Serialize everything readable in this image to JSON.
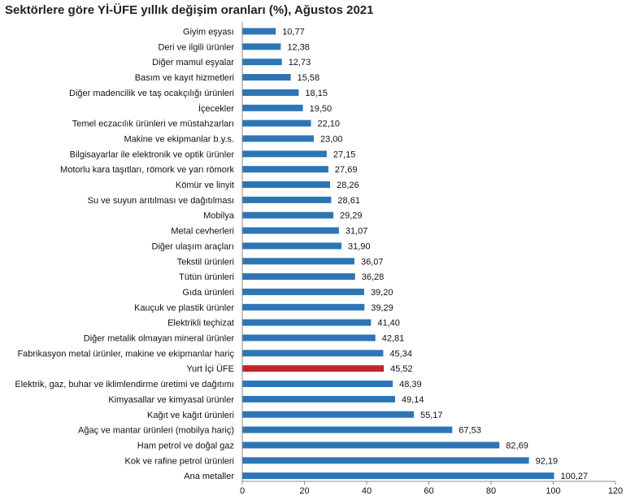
{
  "chart_data": {
    "type": "bar",
    "orientation": "horizontal",
    "title": "Sektörlere göre Yİ-ÜFE yıllık değişim oranları (%), Ağustos 2021",
    "xlabel": "",
    "ylabel": "",
    "xlim": [
      0,
      120
    ],
    "xticks": [
      "0",
      "20",
      "40",
      "60",
      "80",
      "100",
      "120"
    ],
    "grid": false,
    "legend": "none",
    "colors": {
      "default": "#2E75B6",
      "highlight": "#C0272D"
    },
    "highlight_category": "Yurt İçi ÜFE",
    "categories": [
      "Giyim eşyası",
      "Deri ve ilgili ürünler",
      "Diğer mamul eşyalar",
      "Basım ve kayıt hizmetleri",
      "Diğer madencilik ve taş ocakçılığı ürünleri",
      "İçecekler",
      "Temel eczacılık ürünleri ve müstahzarları",
      "Makine ve ekipmanlar b.y.s.",
      "Bilgisayarlar ile elektronik ve optik ürünler",
      "Motorlu kara taşıtları, römork ve yarı römork",
      "Kömür ve linyit",
      "Su ve suyun arıtılması ve dağıtılması",
      "Mobilya",
      "Metal cevherleri",
      "Diğer ulaşım araçları",
      "Tekstil ürünleri",
      "Tütün ürünleri",
      "Gıda ürünleri",
      "Kauçuk ve plastik ürünler",
      "Elektrikli teçhizat",
      "Diğer metalik olmayan mineral ürünler",
      "Fabrikasyon metal ürünler, makine ve ekipmanlar hariç",
      "Yurt İçi ÜFE",
      "Elektrik, gaz, buhar ve iklimlendirme üretimi ve dağıtımı",
      "Kimyasallar ve kimyasal ürünler",
      "Kağıt ve kağıt ürünleri",
      "Ağaç ve mantar ürünleri (mobilya hariç)",
      "Ham petrol ve doğal gaz",
      "Kok ve rafine petrol ürünleri",
      "Ana metaller"
    ],
    "values": [
      10.77,
      12.38,
      12.73,
      15.58,
      18.15,
      19.5,
      22.1,
      23.0,
      27.15,
      27.69,
      28.26,
      28.61,
      29.29,
      31.07,
      31.9,
      36.07,
      36.28,
      39.2,
      39.29,
      41.4,
      42.81,
      45.34,
      45.52,
      48.39,
      49.14,
      55.17,
      67.53,
      82.69,
      92.19,
      100.27
    ],
    "value_labels": [
      "10,77",
      "12,38",
      "12,73",
      "15,58",
      "18,15",
      "19,50",
      "22,10",
      "23,00",
      "27,15",
      "27,69",
      "28,26",
      "28,61",
      "29,29",
      "31,07",
      "31,90",
      "36,07",
      "36,28",
      "39,20",
      "39,29",
      "41,40",
      "42,81",
      "45,34",
      "45,52",
      "48,39",
      "49,14",
      "55,17",
      "67,53",
      "82,69",
      "92,19",
      "100,27"
    ]
  }
}
